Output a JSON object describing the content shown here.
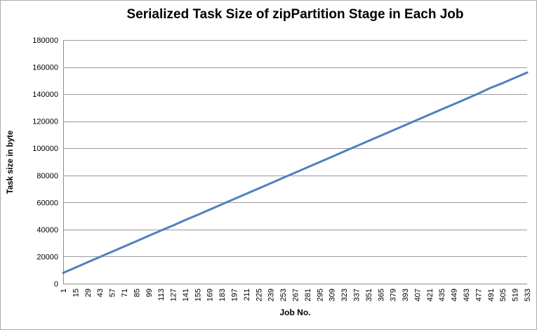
{
  "window": {
    "background": "#ffffff",
    "border_color": "#ababab"
  },
  "chart_data": {
    "type": "line",
    "title": "Serialized Task Size of zipPartition Stage in Each Job",
    "xlabel": "Job No.",
    "ylabel": "Task size in byte",
    "xlim": [
      1,
      533
    ],
    "ylim": [
      0,
      180000
    ],
    "x_tick_labels": [
      1,
      15,
      29,
      43,
      57,
      71,
      85,
      99,
      113,
      127,
      141,
      155,
      169,
      183,
      197,
      211,
      225,
      239,
      253,
      267,
      281,
      295,
      309,
      323,
      337,
      351,
      365,
      379,
      393,
      407,
      421,
      435,
      449,
      463,
      477,
      491,
      505,
      519,
      533
    ],
    "y_tick_labels": [
      0,
      20000,
      40000,
      60000,
      80000,
      100000,
      120000,
      140000,
      160000,
      180000
    ],
    "grid": true,
    "legend_position": "none",
    "colors": {
      "line": "#4F81BD",
      "gridline": "#9b9b9b",
      "axis": "#8c8c8c",
      "text": "#000000"
    },
    "series": [
      {
        "x": [
          1,
          15,
          29,
          43,
          57,
          71,
          85,
          99,
          113,
          127,
          141,
          155,
          169,
          183,
          197,
          211,
          225,
          239,
          253,
          267,
          281,
          295,
          309,
          323,
          337,
          351,
          365,
          379,
          393,
          407,
          421,
          435,
          449,
          463,
          477,
          491,
          505,
          519,
          533
        ],
        "values": [
          8000,
          11900,
          15800,
          19700,
          23600,
          27500,
          31400,
          35300,
          39200,
          43000,
          47000,
          50800,
          54700,
          58600,
          62500,
          66400,
          70300,
          74200,
          78100,
          82000,
          85900,
          89800,
          93700,
          97600,
          101500,
          105400,
          109300,
          113200,
          117100,
          121000,
          124900,
          128800,
          132600,
          136500,
          140400,
          144700,
          148200,
          152100,
          156000
        ]
      }
    ]
  }
}
